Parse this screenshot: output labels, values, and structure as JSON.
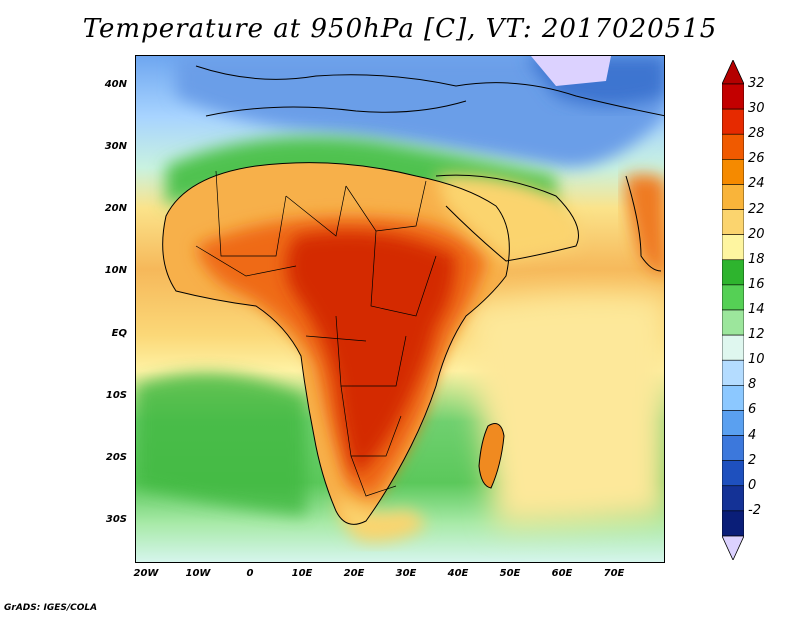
{
  "title": "Temperature at 950hPa [C], VT: 2017020515",
  "footer": "GrADS: IGES/COLA",
  "axes": {
    "y_ticks": [
      "40N",
      "30N",
      "20N",
      "10N",
      "EQ",
      "10S",
      "20S",
      "30S"
    ],
    "x_ticks": [
      "20W",
      "10W",
      "0",
      "10E",
      "20E",
      "30E",
      "40E",
      "50E",
      "60E",
      "70E"
    ]
  },
  "colorbar": {
    "labels": [
      "32",
      "30",
      "28",
      "26",
      "24",
      "22",
      "20",
      "18",
      "16",
      "14",
      "12",
      "10",
      "8",
      "6",
      "4",
      "2",
      "0",
      "-2"
    ],
    "colors": [
      "#c30000",
      "#e62a00",
      "#f05a00",
      "#f58a00",
      "#f9b43a",
      "#fbd46e",
      "#fef5a0",
      "#2eb42e",
      "#55d055",
      "#9ce69c",
      "#dff7ef",
      "#b4dcff",
      "#8cc8ff",
      "#5aa0f0",
      "#3c78dc",
      "#1e50be",
      "#143296",
      "#0a1e78"
    ],
    "over_color": "#b40000",
    "under_color": "#dcd2ff"
  }
}
